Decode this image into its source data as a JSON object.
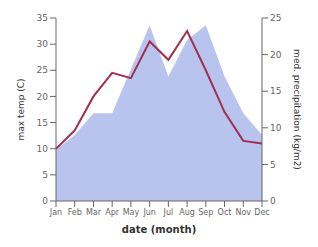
{
  "chart_data": {
    "type": "line",
    "categories": [
      "Jan",
      "Feb",
      "Mar",
      "Apr",
      "May",
      "Jun",
      "Jul",
      "Aug",
      "Sep",
      "Oct",
      "Nov",
      "Dec"
    ],
    "xlabel": "date (month)",
    "ylabel": "max temp (C)",
    "y2label": "med. precipitation (kg/m2)",
    "ylim": [
      0,
      35
    ],
    "yticks": [
      0,
      5,
      10,
      15,
      20,
      25,
      30,
      35
    ],
    "y2lim": [
      0,
      25
    ],
    "y2ticks": [
      0,
      5,
      10,
      15,
      20,
      25
    ],
    "series": [
      {
        "name": "med. precipitation (kg/m2)",
        "type": "area",
        "axis": "y2",
        "color": "#b8c4ee",
        "values": [
          7,
          9,
          12,
          12,
          18,
          24,
          17,
          22,
          24,
          17,
          12,
          9
        ]
      },
      {
        "name": "max temp (C)",
        "type": "line",
        "color": "#a03050",
        "values": [
          10,
          13.5,
          20,
          24.5,
          23.5,
          30.5,
          27,
          32.5,
          25,
          17,
          11.5,
          11
        ]
      }
    ]
  }
}
